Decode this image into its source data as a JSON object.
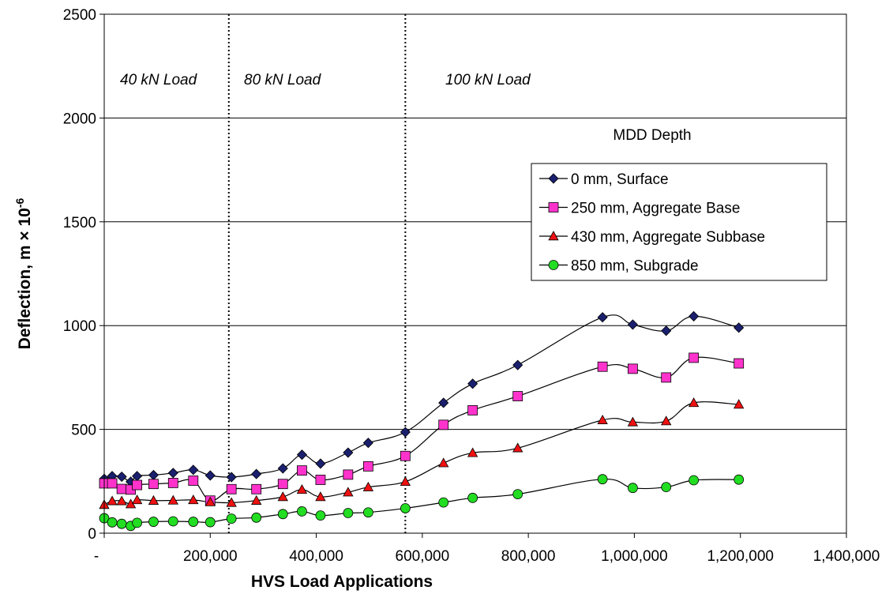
{
  "chart_data": {
    "type": "line",
    "xlabel": "HVS Load Applications",
    "ylabel": "Deflection, m × 10",
    "ylabel_superscript": "-6",
    "xlim": [
      0,
      1400000
    ],
    "ylim": [
      0,
      2500
    ],
    "xticks": [
      0,
      200000,
      400000,
      600000,
      800000,
      1000000,
      1200000,
      1400000
    ],
    "xtick_labels": [
      "-",
      "200,000",
      "400,000",
      "600,000",
      "800,000",
      "1,000,000",
      "1,200,000",
      "1,400,000"
    ],
    "yticks": [
      0,
      500,
      1000,
      1500,
      2000,
      2500
    ],
    "ytick_labels": [
      "0",
      "500",
      "1000",
      "1500",
      "2000",
      "2500"
    ],
    "grid": "horizontal",
    "legend_title": "MDD Depth",
    "legend_position": "right",
    "load_phase_boundaries": [
      235000,
      568000
    ],
    "annotations": [
      "40 kN Load",
      "80 kN Load",
      "100 kN Load"
    ],
    "x": [
      0,
      15000,
      33000,
      50000,
      62000,
      93000,
      130000,
      168000,
      200000,
      240000,
      287000,
      337000,
      373000,
      408000,
      460000,
      498000,
      568000,
      640000,
      695000,
      780000,
      940000,
      997000,
      1060000,
      1112000,
      1197000
    ],
    "series": [
      {
        "name": "0 mm, Surface",
        "color": "#1a1f6e",
        "marker": "diamond",
        "values": [
          262,
          275,
          272,
          248,
          275,
          280,
          290,
          305,
          278,
          270,
          285,
          312,
          378,
          335,
          388,
          435,
          487,
          628,
          720,
          810,
          1040,
          1005,
          975,
          1045,
          990
        ]
      },
      {
        "name": "250 mm, Aggregate Base",
        "color": "#ff33cc",
        "marker": "square",
        "values": [
          240,
          240,
          213,
          210,
          232,
          237,
          242,
          253,
          157,
          212,
          212,
          237,
          302,
          257,
          282,
          322,
          372,
          522,
          592,
          660,
          802,
          792,
          750,
          845,
          818
        ]
      },
      {
        "name": "430 mm, Aggregate Subbase",
        "color": "#ee1111",
        "marker": "triangle",
        "values": [
          137,
          155,
          155,
          140,
          160,
          157,
          158,
          160,
          150,
          147,
          157,
          175,
          210,
          175,
          197,
          222,
          248,
          338,
          387,
          410,
          545,
          535,
          540,
          628,
          620
        ]
      },
      {
        "name": "850 mm, Subgrade",
        "color": "#22dd22",
        "marker": "circle",
        "values": [
          72,
          52,
          45,
          35,
          50,
          55,
          57,
          55,
          53,
          70,
          75,
          92,
          105,
          85,
          97,
          100,
          120,
          148,
          170,
          188,
          260,
          218,
          222,
          255,
          258
        ]
      }
    ]
  }
}
